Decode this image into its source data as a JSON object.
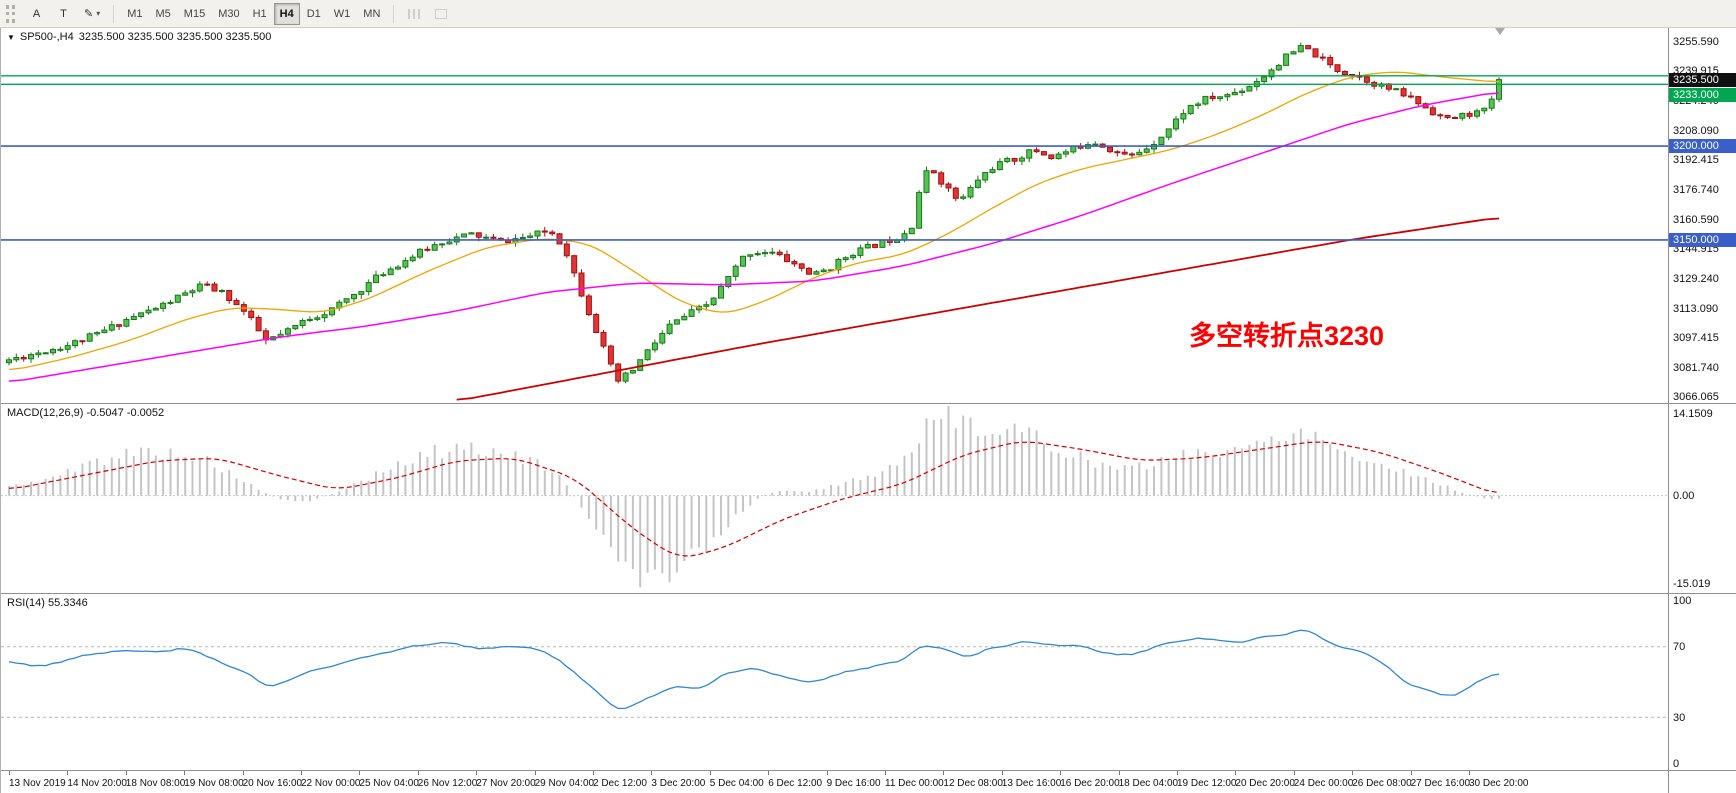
{
  "toolbar": {
    "tools": [
      {
        "label": "A"
      },
      {
        "label": "T"
      },
      {
        "label": "✎"
      }
    ],
    "caret": "▾",
    "timeframes": [
      "M1",
      "M5",
      "M15",
      "M30",
      "H1",
      "H4",
      "D1",
      "W1",
      "MN"
    ],
    "active_timeframe": "H4"
  },
  "icons": {
    "collapse_triangle": "▼"
  },
  "chart": {
    "header": {
      "symbol": "SP500-,H4",
      "ohlc": "3235.500 3235.500 3235.500 3235.500"
    },
    "annotation": {
      "text": "多空转折点3230",
      "color": "#ff0000"
    },
    "price_axis": {
      "ticks": [
        "3255.590",
        "3239.915",
        "3224.240",
        "3208.090",
        "3192.415",
        "3176.740",
        "3160.590",
        "3144.915",
        "3129.240",
        "3113.090",
        "3097.415",
        "3081.740",
        "3066.065"
      ],
      "badges": [
        {
          "label": "3235.500",
          "price": 3235.5,
          "type": "black"
        },
        {
          "label": "3233.000",
          "price": 3233.0,
          "type": "green"
        },
        {
          "label": "3200.000",
          "price": 3200.0,
          "type": "blue"
        },
        {
          "label": "3150.000",
          "price": 3150.0,
          "type": "blue"
        }
      ]
    }
  },
  "macd": {
    "header": "MACD(12,26,9) -0.5047 -0.0052",
    "ticks": [
      {
        "label": "14.1509",
        "value": 14.1509
      },
      {
        "label": "0.00",
        "value": 0
      },
      {
        "label": "-15.019",
        "value": -15.019
      }
    ]
  },
  "rsi": {
    "header": "RSI(14) 55.3346",
    "ticks": [
      {
        "label": "100",
        "value": 100
      },
      {
        "label": "70",
        "value": 70
      },
      {
        "label": "30",
        "value": 30
      },
      {
        "label": "0",
        "value": 0
      }
    ]
  },
  "time_axis": {
    "labels": [
      "13 Nov 2019",
      "14 Nov 20:00",
      "18 Nov 08:00",
      "19 Nov 08:00",
      "20 Nov 16:00",
      "22 Nov 00:00",
      "25 Nov 04:00",
      "26 Nov 12:00",
      "27 Nov 20:00",
      "29 Nov 04:00",
      "2 Dec 12:00",
      "3 Dec 20:00",
      "5 Dec 04:00",
      "6 Dec 12:00",
      "9 Dec 16:00",
      "11 Dec 00:00",
      "12 Dec 08:00",
      "13 Dec 16:00",
      "16 Dec 20:00",
      "18 Dec 04:00",
      "19 Dec 12:00",
      "20 Dec 20:00",
      "24 Dec 00:00",
      "26 Dec 08:00",
      "27 Dec 16:00",
      "30 Dec 20:00"
    ]
  },
  "chart_data": {
    "type": "candlestick",
    "symbol": "SP500-",
    "timeframe": "H4",
    "current_ohlc": {
      "open": 3235.5,
      "high": 3235.5,
      "low": 3235.5,
      "close": 3235.5
    },
    "price_range": [
      3063,
      3263
    ],
    "num_candles": 204,
    "price_path": [
      [
        0,
        3086
      ],
      [
        0.02,
        3090
      ],
      [
        0.04,
        3094
      ],
      [
        0.06,
        3100
      ],
      [
        0.08,
        3108
      ],
      [
        0.1,
        3114
      ],
      [
        0.115,
        3120
      ],
      [
        0.13,
        3126
      ],
      [
        0.145,
        3121
      ],
      [
        0.16,
        3110
      ],
      [
        0.172,
        3096
      ],
      [
        0.185,
        3100
      ],
      [
        0.2,
        3108
      ],
      [
        0.215,
        3112
      ],
      [
        0.23,
        3120
      ],
      [
        0.25,
        3132
      ],
      [
        0.27,
        3141
      ],
      [
        0.29,
        3149
      ],
      [
        0.31,
        3153
      ],
      [
        0.33,
        3149
      ],
      [
        0.35,
        3152
      ],
      [
        0.363,
        3155
      ],
      [
        0.373,
        3146
      ],
      [
        0.383,
        3124
      ],
      [
        0.395,
        3100
      ],
      [
        0.408,
        3074
      ],
      [
        0.418,
        3080
      ],
      [
        0.43,
        3092
      ],
      [
        0.443,
        3104
      ],
      [
        0.455,
        3110
      ],
      [
        0.47,
        3116
      ],
      [
        0.483,
        3130
      ],
      [
        0.495,
        3143
      ],
      [
        0.51,
        3144
      ],
      [
        0.525,
        3138
      ],
      [
        0.54,
        3131
      ],
      [
        0.553,
        3136
      ],
      [
        0.565,
        3143
      ],
      [
        0.58,
        3147
      ],
      [
        0.598,
        3152
      ],
      [
        0.606,
        3158
      ],
      [
        0.612,
        3180
      ],
      [
        0.618,
        3189
      ],
      [
        0.628,
        3179
      ],
      [
        0.638,
        3170
      ],
      [
        0.65,
        3182
      ],
      [
        0.662,
        3190
      ],
      [
        0.675,
        3193
      ],
      [
        0.688,
        3198
      ],
      [
        0.7,
        3194
      ],
      [
        0.713,
        3198
      ],
      [
        0.727,
        3203
      ],
      [
        0.74,
        3198
      ],
      [
        0.752,
        3194
      ],
      [
        0.765,
        3200
      ],
      [
        0.777,
        3208
      ],
      [
        0.79,
        3220
      ],
      [
        0.803,
        3225
      ],
      [
        0.817,
        3227
      ],
      [
        0.83,
        3231
      ],
      [
        0.843,
        3238
      ],
      [
        0.856,
        3247
      ],
      [
        0.868,
        3253
      ],
      [
        0.878,
        3248
      ],
      [
        0.89,
        3241
      ],
      [
        0.903,
        3238
      ],
      [
        0.915,
        3234
      ],
      [
        0.928,
        3230
      ],
      [
        0.94,
        3226
      ],
      [
        0.952,
        3220
      ],
      [
        0.965,
        3214
      ],
      [
        0.978,
        3217
      ],
      [
        0.992,
        3219
      ],
      [
        1,
        3235.5
      ]
    ],
    "ma_fast_path": [
      [
        0,
        3080
      ],
      [
        0.04,
        3087
      ],
      [
        0.08,
        3096
      ],
      [
        0.12,
        3108
      ],
      [
        0.15,
        3114
      ],
      [
        0.18,
        3113
      ],
      [
        0.21,
        3111
      ],
      [
        0.24,
        3118
      ],
      [
        0.28,
        3133
      ],
      [
        0.32,
        3146
      ],
      [
        0.36,
        3151
      ],
      [
        0.39,
        3148
      ],
      [
        0.42,
        3133
      ],
      [
        0.45,
        3117
      ],
      [
        0.48,
        3110
      ],
      [
        0.51,
        3118
      ],
      [
        0.54,
        3130
      ],
      [
        0.57,
        3138
      ],
      [
        0.6,
        3142
      ],
      [
        0.63,
        3153
      ],
      [
        0.66,
        3167
      ],
      [
        0.69,
        3180
      ],
      [
        0.72,
        3188
      ],
      [
        0.75,
        3193
      ],
      [
        0.78,
        3198
      ],
      [
        0.81,
        3206
      ],
      [
        0.84,
        3216
      ],
      [
        0.87,
        3228
      ],
      [
        0.9,
        3237
      ],
      [
        0.93,
        3240
      ],
      [
        0.96,
        3237
      ],
      [
        1,
        3234
      ]
    ],
    "ma_mid_path": [
      [
        0,
        3074
      ],
      [
        0.06,
        3082
      ],
      [
        0.12,
        3090
      ],
      [
        0.18,
        3098
      ],
      [
        0.24,
        3104
      ],
      [
        0.3,
        3112
      ],
      [
        0.36,
        3122
      ],
      [
        0.42,
        3127
      ],
      [
        0.48,
        3126
      ],
      [
        0.54,
        3128
      ],
      [
        0.6,
        3136
      ],
      [
        0.66,
        3148
      ],
      [
        0.72,
        3163
      ],
      [
        0.78,
        3180
      ],
      [
        0.84,
        3196
      ],
      [
        0.9,
        3212
      ],
      [
        0.95,
        3222
      ],
      [
        1,
        3229
      ]
    ],
    "ma_slow_path": [
      [
        0.3,
        3064
      ],
      [
        0.4,
        3079
      ],
      [
        0.5,
        3094
      ],
      [
        0.6,
        3108
      ],
      [
        0.7,
        3122
      ],
      [
        0.8,
        3136
      ],
      [
        0.9,
        3150
      ],
      [
        1,
        3162
      ]
    ],
    "ma_slow_start_t": 0.3,
    "hlines": [
      {
        "price": 3237.5,
        "color": "green"
      },
      {
        "price": 3233.0,
        "color": "green"
      },
      {
        "price": 3200.0,
        "color": "blue"
      },
      {
        "price": 3150.0,
        "color": "blue"
      }
    ],
    "macd": {
      "name": "MACD(12,26,9)",
      "current": [
        -0.5047,
        -0.0052
      ],
      "range": [
        -16.8,
        15.8
      ],
      "hist_path": [
        [
          0,
          1.5
        ],
        [
          0.03,
          3
        ],
        [
          0.06,
          6
        ],
        [
          0.09,
          7.5
        ],
        [
          0.12,
          7
        ],
        [
          0.14,
          5
        ],
        [
          0.16,
          2
        ],
        [
          0.18,
          -0.5
        ],
        [
          0.2,
          -1
        ],
        [
          0.22,
          0.5
        ],
        [
          0.25,
          4
        ],
        [
          0.28,
          7
        ],
        [
          0.31,
          8.5
        ],
        [
          0.33,
          7
        ],
        [
          0.35,
          6
        ],
        [
          0.37,
          3
        ],
        [
          0.385,
          -2
        ],
        [
          0.4,
          -8
        ],
        [
          0.415,
          -13
        ],
        [
          0.43,
          -15
        ],
        [
          0.445,
          -13
        ],
        [
          0.46,
          -10
        ],
        [
          0.475,
          -7
        ],
        [
          0.49,
          -3
        ],
        [
          0.505,
          0
        ],
        [
          0.52,
          1
        ],
        [
          0.535,
          0.5
        ],
        [
          0.55,
          1.5
        ],
        [
          0.565,
          2.5
        ],
        [
          0.58,
          3.5
        ],
        [
          0.6,
          6
        ],
        [
          0.615,
          11
        ],
        [
          0.63,
          14
        ],
        [
          0.645,
          12.5
        ],
        [
          0.66,
          11
        ],
        [
          0.675,
          10.5
        ],
        [
          0.69,
          10
        ],
        [
          0.705,
          8
        ],
        [
          0.72,
          6.5
        ],
        [
          0.735,
          5
        ],
        [
          0.75,
          4.5
        ],
        [
          0.765,
          5
        ],
        [
          0.78,
          6.5
        ],
        [
          0.795,
          7.5
        ],
        [
          0.81,
          7
        ],
        [
          0.825,
          7.5
        ],
        [
          0.84,
          9
        ],
        [
          0.855,
          10.5
        ],
        [
          0.87,
          11.5
        ],
        [
          0.885,
          9
        ],
        [
          0.9,
          7
        ],
        [
          0.915,
          5.5
        ],
        [
          0.93,
          4.5
        ],
        [
          0.945,
          3.5
        ],
        [
          0.96,
          2
        ],
        [
          0.975,
          0.5
        ],
        [
          0.99,
          -0.5
        ],
        [
          1,
          -0.5
        ]
      ],
      "signal_path": [
        [
          0,
          1
        ],
        [
          0.05,
          3.5
        ],
        [
          0.1,
          6
        ],
        [
          0.14,
          6.5
        ],
        [
          0.18,
          3.5
        ],
        [
          0.22,
          1
        ],
        [
          0.26,
          3
        ],
        [
          0.3,
          6
        ],
        [
          0.34,
          6.5
        ],
        [
          0.38,
          3
        ],
        [
          0.42,
          -6
        ],
        [
          0.45,
          -11
        ],
        [
          0.48,
          -9
        ],
        [
          0.52,
          -4
        ],
        [
          0.56,
          -0.5
        ],
        [
          0.6,
          2
        ],
        [
          0.64,
          7
        ],
        [
          0.68,
          9.5
        ],
        [
          0.72,
          8
        ],
        [
          0.76,
          6
        ],
        [
          0.8,
          6.5
        ],
        [
          0.84,
          8
        ],
        [
          0.88,
          9.5
        ],
        [
          0.92,
          7.5
        ],
        [
          0.96,
          4
        ],
        [
          1,
          0
        ]
      ]
    },
    "rsi": {
      "name": "RSI(14)",
      "current": 55.3346,
      "range": [
        0,
        100
      ],
      "levels": [
        70,
        30
      ],
      "path": [
        [
          0,
          62
        ],
        [
          0.02,
          58
        ],
        [
          0.05,
          65
        ],
        [
          0.08,
          68
        ],
        [
          0.1,
          66
        ],
        [
          0.12,
          70
        ],
        [
          0.14,
          62
        ],
        [
          0.16,
          55
        ],
        [
          0.175,
          47
        ],
        [
          0.19,
          52
        ],
        [
          0.21,
          58
        ],
        [
          0.24,
          64
        ],
        [
          0.27,
          70
        ],
        [
          0.3,
          72
        ],
        [
          0.32,
          68
        ],
        [
          0.345,
          70
        ],
        [
          0.36,
          67
        ],
        [
          0.38,
          55
        ],
        [
          0.4,
          40
        ],
        [
          0.41,
          33
        ],
        [
          0.43,
          42
        ],
        [
          0.45,
          48
        ],
        [
          0.46,
          44
        ],
        [
          0.48,
          55
        ],
        [
          0.5,
          58
        ],
        [
          0.52,
          54
        ],
        [
          0.54,
          50
        ],
        [
          0.56,
          55
        ],
        [
          0.58,
          58
        ],
        [
          0.6,
          62
        ],
        [
          0.615,
          72
        ],
        [
          0.63,
          68
        ],
        [
          0.645,
          63
        ],
        [
          0.66,
          70
        ],
        [
          0.68,
          72
        ],
        [
          0.7,
          70
        ],
        [
          0.72,
          71
        ],
        [
          0.74,
          65
        ],
        [
          0.76,
          67
        ],
        [
          0.78,
          73
        ],
        [
          0.8,
          75
        ],
        [
          0.82,
          73
        ],
        [
          0.84,
          75
        ],
        [
          0.86,
          78
        ],
        [
          0.87,
          80
        ],
        [
          0.885,
          72
        ],
        [
          0.9,
          70
        ],
        [
          0.92,
          62
        ],
        [
          0.94,
          48
        ],
        [
          0.955,
          44
        ],
        [
          0.97,
          42
        ],
        [
          0.985,
          50
        ],
        [
          1,
          55.33
        ]
      ]
    },
    "colors": {
      "up_fill": "#55c255",
      "up_stroke": "#157a15",
      "down_fill": "#e23434",
      "down_stroke": "#a31111",
      "ma_fast": "#f0a500",
      "ma_mid": "#ff00ff",
      "ma_slow": "#cc0000",
      "hline_green": "#00a651",
      "hline_blue": "#3a5fc8",
      "macd_hist": "#c4c4c4",
      "macd_signal": "#d40000",
      "rsi_line": "#2e86d4",
      "annotation": "#ff0000"
    }
  }
}
